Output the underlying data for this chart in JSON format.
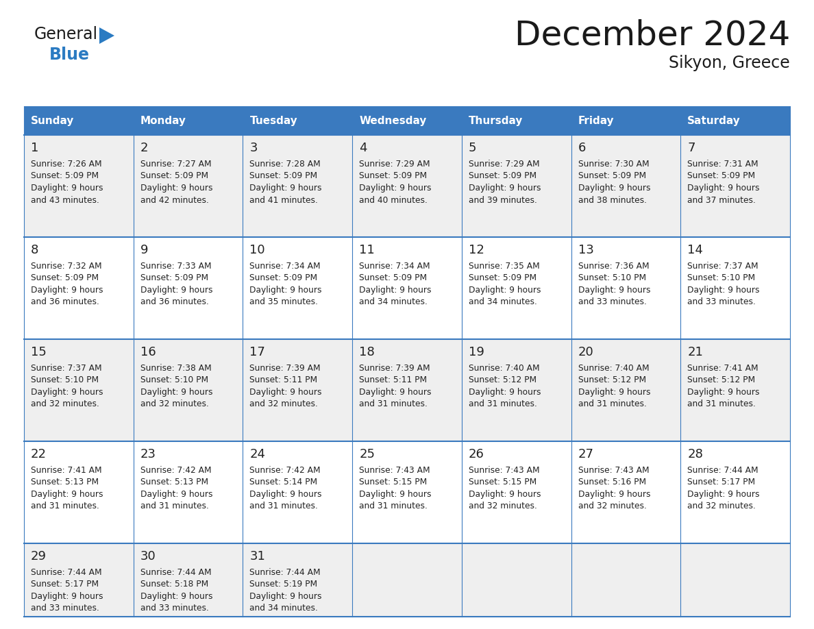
{
  "title": "December 2024",
  "subtitle": "Sikyon, Greece",
  "days_of_week": [
    "Sunday",
    "Monday",
    "Tuesday",
    "Wednesday",
    "Thursday",
    "Friday",
    "Saturday"
  ],
  "header_bg_color": "#3a7abf",
  "header_text_color": "#ffffff",
  "row_bg_colors": [
    "#efefef",
    "#ffffff",
    "#efefef",
    "#ffffff",
    "#efefef"
  ],
  "cell_text_color": "#222222",
  "grid_color": "#3a7abf",
  "title_color": "#1a1a1a",
  "subtitle_color": "#1a1a1a",
  "logo_general_color": "#1a1a1a",
  "logo_blue_color": "#2b7bc2",
  "weeks": [
    [
      {
        "day": 1,
        "sunrise": "7:26 AM",
        "sunset": "5:09 PM",
        "daylight_hours": "9 hours",
        "daylight_mins": "and 43 minutes."
      },
      {
        "day": 2,
        "sunrise": "7:27 AM",
        "sunset": "5:09 PM",
        "daylight_hours": "9 hours",
        "daylight_mins": "and 42 minutes."
      },
      {
        "day": 3,
        "sunrise": "7:28 AM",
        "sunset": "5:09 PM",
        "daylight_hours": "9 hours",
        "daylight_mins": "and 41 minutes."
      },
      {
        "day": 4,
        "sunrise": "7:29 AM",
        "sunset": "5:09 PM",
        "daylight_hours": "9 hours",
        "daylight_mins": "and 40 minutes."
      },
      {
        "day": 5,
        "sunrise": "7:29 AM",
        "sunset": "5:09 PM",
        "daylight_hours": "9 hours",
        "daylight_mins": "and 39 minutes."
      },
      {
        "day": 6,
        "sunrise": "7:30 AM",
        "sunset": "5:09 PM",
        "daylight_hours": "9 hours",
        "daylight_mins": "and 38 minutes."
      },
      {
        "day": 7,
        "sunrise": "7:31 AM",
        "sunset": "5:09 PM",
        "daylight_hours": "9 hours",
        "daylight_mins": "and 37 minutes."
      }
    ],
    [
      {
        "day": 8,
        "sunrise": "7:32 AM",
        "sunset": "5:09 PM",
        "daylight_hours": "9 hours",
        "daylight_mins": "and 36 minutes."
      },
      {
        "day": 9,
        "sunrise": "7:33 AM",
        "sunset": "5:09 PM",
        "daylight_hours": "9 hours",
        "daylight_mins": "and 36 minutes."
      },
      {
        "day": 10,
        "sunrise": "7:34 AM",
        "sunset": "5:09 PM",
        "daylight_hours": "9 hours",
        "daylight_mins": "and 35 minutes."
      },
      {
        "day": 11,
        "sunrise": "7:34 AM",
        "sunset": "5:09 PM",
        "daylight_hours": "9 hours",
        "daylight_mins": "and 34 minutes."
      },
      {
        "day": 12,
        "sunrise": "7:35 AM",
        "sunset": "5:09 PM",
        "daylight_hours": "9 hours",
        "daylight_mins": "and 34 minutes."
      },
      {
        "day": 13,
        "sunrise": "7:36 AM",
        "sunset": "5:10 PM",
        "daylight_hours": "9 hours",
        "daylight_mins": "and 33 minutes."
      },
      {
        "day": 14,
        "sunrise": "7:37 AM",
        "sunset": "5:10 PM",
        "daylight_hours": "9 hours",
        "daylight_mins": "and 33 minutes."
      }
    ],
    [
      {
        "day": 15,
        "sunrise": "7:37 AM",
        "sunset": "5:10 PM",
        "daylight_hours": "9 hours",
        "daylight_mins": "and 32 minutes."
      },
      {
        "day": 16,
        "sunrise": "7:38 AM",
        "sunset": "5:10 PM",
        "daylight_hours": "9 hours",
        "daylight_mins": "and 32 minutes."
      },
      {
        "day": 17,
        "sunrise": "7:39 AM",
        "sunset": "5:11 PM",
        "daylight_hours": "9 hours",
        "daylight_mins": "and 32 minutes."
      },
      {
        "day": 18,
        "sunrise": "7:39 AM",
        "sunset": "5:11 PM",
        "daylight_hours": "9 hours",
        "daylight_mins": "and 31 minutes."
      },
      {
        "day": 19,
        "sunrise": "7:40 AM",
        "sunset": "5:12 PM",
        "daylight_hours": "9 hours",
        "daylight_mins": "and 31 minutes."
      },
      {
        "day": 20,
        "sunrise": "7:40 AM",
        "sunset": "5:12 PM",
        "daylight_hours": "9 hours",
        "daylight_mins": "and 31 minutes."
      },
      {
        "day": 21,
        "sunrise": "7:41 AM",
        "sunset": "5:12 PM",
        "daylight_hours": "9 hours",
        "daylight_mins": "and 31 minutes."
      }
    ],
    [
      {
        "day": 22,
        "sunrise": "7:41 AM",
        "sunset": "5:13 PM",
        "daylight_hours": "9 hours",
        "daylight_mins": "and 31 minutes."
      },
      {
        "day": 23,
        "sunrise": "7:42 AM",
        "sunset": "5:13 PM",
        "daylight_hours": "9 hours",
        "daylight_mins": "and 31 minutes."
      },
      {
        "day": 24,
        "sunrise": "7:42 AM",
        "sunset": "5:14 PM",
        "daylight_hours": "9 hours",
        "daylight_mins": "and 31 minutes."
      },
      {
        "day": 25,
        "sunrise": "7:43 AM",
        "sunset": "5:15 PM",
        "daylight_hours": "9 hours",
        "daylight_mins": "and 31 minutes."
      },
      {
        "day": 26,
        "sunrise": "7:43 AM",
        "sunset": "5:15 PM",
        "daylight_hours": "9 hours",
        "daylight_mins": "and 32 minutes."
      },
      {
        "day": 27,
        "sunrise": "7:43 AM",
        "sunset": "5:16 PM",
        "daylight_hours": "9 hours",
        "daylight_mins": "and 32 minutes."
      },
      {
        "day": 28,
        "sunrise": "7:44 AM",
        "sunset": "5:17 PM",
        "daylight_hours": "9 hours",
        "daylight_mins": "and 32 minutes."
      }
    ],
    [
      {
        "day": 29,
        "sunrise": "7:44 AM",
        "sunset": "5:17 PM",
        "daylight_hours": "9 hours",
        "daylight_mins": "and 33 minutes."
      },
      {
        "day": 30,
        "sunrise": "7:44 AM",
        "sunset": "5:18 PM",
        "daylight_hours": "9 hours",
        "daylight_mins": "and 33 minutes."
      },
      {
        "day": 31,
        "sunrise": "7:44 AM",
        "sunset": "5:19 PM",
        "daylight_hours": "9 hours",
        "daylight_mins": "and 34 minutes."
      },
      null,
      null,
      null,
      null
    ]
  ]
}
